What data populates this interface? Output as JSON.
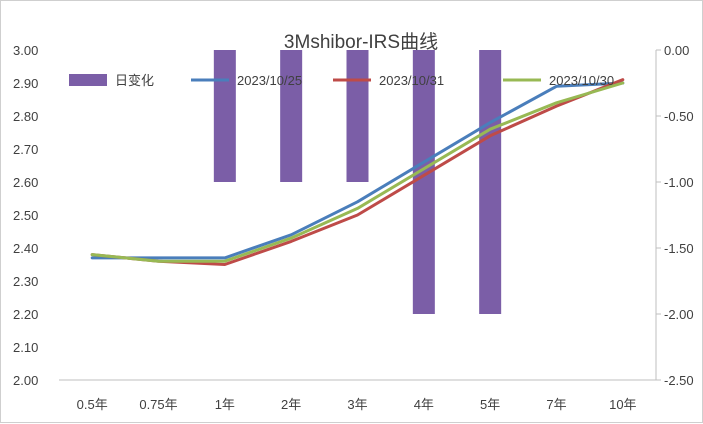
{
  "chart_data": {
    "type": "bar+line",
    "title": "3Mshibor-IRS曲线",
    "categories": [
      "0.5年",
      "0.75年",
      "1年",
      "2年",
      "3年",
      "4年",
      "5年",
      "7年",
      "10年"
    ],
    "bar_series": {
      "name": "日变化",
      "axis": "right",
      "color": "#7b5ea7",
      "values": [
        null,
        null,
        -1.0,
        -1.0,
        -1.0,
        -2.0,
        -2.0,
        null,
        null
      ]
    },
    "line_series": [
      {
        "name": "2023/10/25",
        "color": "#4a7ebb",
        "axis": "left",
        "values": [
          2.37,
          2.37,
          2.37,
          2.44,
          2.54,
          2.66,
          2.78,
          2.89,
          2.9
        ]
      },
      {
        "name": "2023/10/31",
        "color": "#be4b48",
        "axis": "left",
        "values": [
          2.38,
          2.36,
          2.35,
          2.42,
          2.5,
          2.62,
          2.74,
          2.83,
          2.91
        ]
      },
      {
        "name": "2023/10/30",
        "color": "#98b954",
        "axis": "left",
        "values": [
          2.38,
          2.36,
          2.36,
          2.43,
          2.52,
          2.64,
          2.76,
          2.84,
          2.9
        ]
      }
    ],
    "y_left": {
      "min": 2.0,
      "max": 3.0,
      "ticks": [
        "2.00",
        "2.10",
        "2.20",
        "2.30",
        "2.40",
        "2.50",
        "2.60",
        "2.70",
        "2.80",
        "2.90",
        "3.00"
      ]
    },
    "y_right": {
      "min": -2.5,
      "max": 0.0,
      "ticks": [
        "-2.50",
        "-2.00",
        "-1.50",
        "-1.00",
        "-0.50",
        "0.00"
      ]
    },
    "legend_position": "top",
    "grid": false
  }
}
